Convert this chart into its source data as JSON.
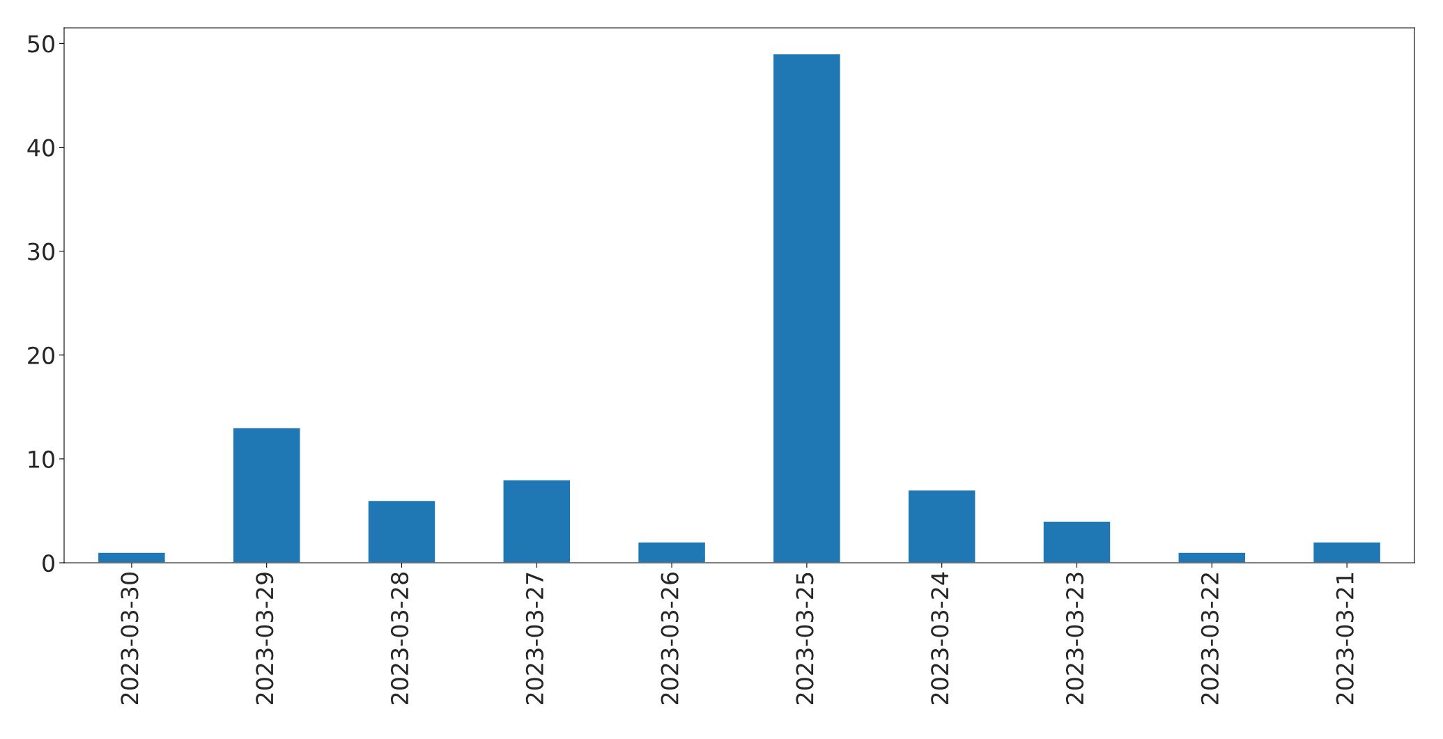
{
  "chart_data": {
    "type": "bar",
    "categories": [
      "2023-03-30",
      "2023-03-29",
      "2023-03-28",
      "2023-03-27",
      "2023-03-26",
      "2023-03-25",
      "2023-03-24",
      "2023-03-23",
      "2023-03-22",
      "2023-03-21"
    ],
    "values": [
      1,
      13,
      6,
      8,
      2,
      49,
      7,
      4,
      1,
      2
    ],
    "color": "#1f77b4",
    "ylim": [
      0,
      51.5
    ],
    "yticks": [
      0,
      10,
      20,
      30,
      40,
      50
    ],
    "grid": false
  }
}
